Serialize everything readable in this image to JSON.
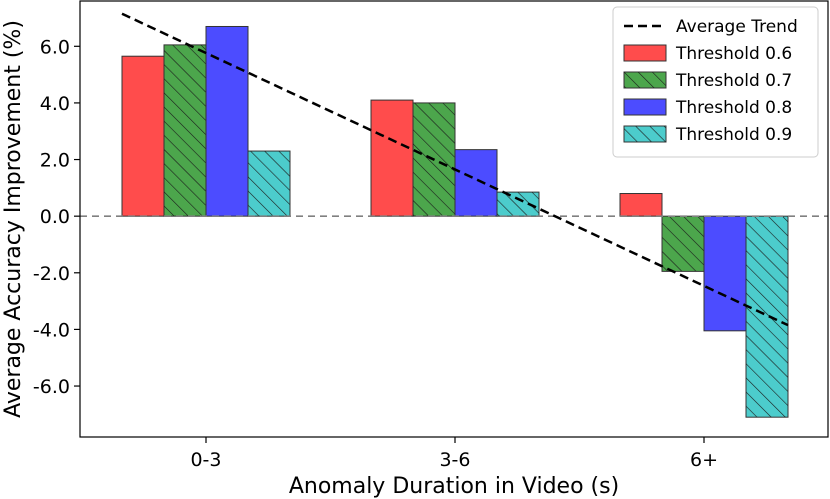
{
  "chart_data": {
    "type": "bar",
    "title": "",
    "xlabel": "Anomaly Duration in Video (s)",
    "ylabel": "Average Accuracy Improvement (%)",
    "categories": [
      "0-3",
      "3-6",
      "6+"
    ],
    "ylim": [
      -7.8,
      7.6
    ],
    "yticks": [
      -6.0,
      -4.0,
      -2.0,
      0.0,
      2.0,
      4.0,
      6.0
    ],
    "grid": false,
    "legend_position": "top-right",
    "zero_line": {
      "y": 0.0,
      "style": "dashed",
      "color": "#808080"
    },
    "series": [
      {
        "name": "Threshold 0.6",
        "values": [
          5.65,
          4.1,
          0.8
        ],
        "color": "#ff4c4c",
        "hatch": ""
      },
      {
        "name": "Threshold 0.7",
        "values": [
          6.05,
          4.0,
          -1.95
        ],
        "color": "#4ca64c",
        "hatch": "//"
      },
      {
        "name": "Threshold 0.8",
        "values": [
          6.7,
          2.35,
          -4.05
        ],
        "color": "#4c4cff",
        "hatch": ""
      },
      {
        "name": "Threshold 0.9",
        "values": [
          2.3,
          0.85,
          -7.1
        ],
        "color": "#4ccccc",
        "hatch": "//"
      }
    ],
    "trend": {
      "name": "Average Trend",
      "x_category_start": "0-3",
      "x_category_end": "6+",
      "y_start": 7.15,
      "y_end": -3.85,
      "style": "dashed",
      "color": "#000000"
    }
  }
}
